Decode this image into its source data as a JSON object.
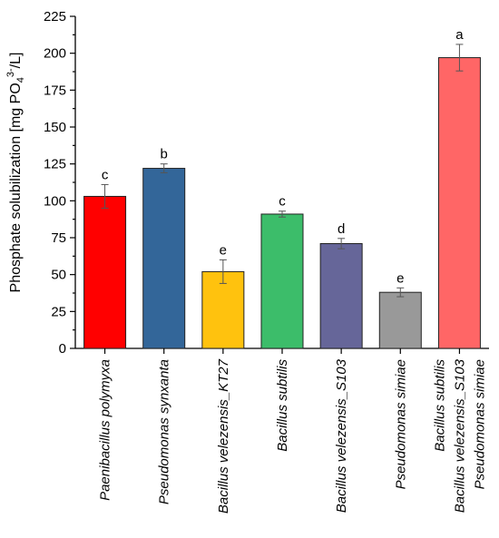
{
  "chart_data": {
    "type": "bar",
    "title": "",
    "xlabel": "",
    "ylabel": "Phosphate solubilization [mg PO4 3-/L]",
    "ylabel_parts": {
      "before": "Phosphate solubilization [mg PO",
      "sub": "4",
      "sup": "3-",
      "after": "/L]"
    },
    "ylim": [
      0,
      225
    ],
    "yticks": [
      "0",
      "25",
      "50",
      "75",
      "100",
      "125",
      "150",
      "175",
      "200",
      "225"
    ],
    "categories": [
      [
        "Paenibacillus polymyxa"
      ],
      [
        "Pseudomonas synxanta"
      ],
      [
        "Bacillus velezensis_KT27"
      ],
      [
        "Bacillus subtilis"
      ],
      [
        "Bacillus velezensis_S103"
      ],
      [
        "Pseudomonas simiae"
      ],
      [
        "Bacillus subtilis",
        "Bacillus velezensis_S103",
        "Pseudomonas simiae"
      ]
    ],
    "values": [
      103,
      122,
      52,
      91,
      71,
      38,
      197
    ],
    "errors": [
      8,
      3,
      8,
      2,
      3.5,
      3,
      9
    ],
    "significance": [
      "c",
      "b",
      "e",
      "c",
      "d",
      "e",
      "a"
    ],
    "colors": [
      "#ff0000",
      "#336699",
      "#ffc20e",
      "#3cbd6a",
      "#666699",
      "#999999",
      "#ff6666"
    ],
    "grid": false
  }
}
